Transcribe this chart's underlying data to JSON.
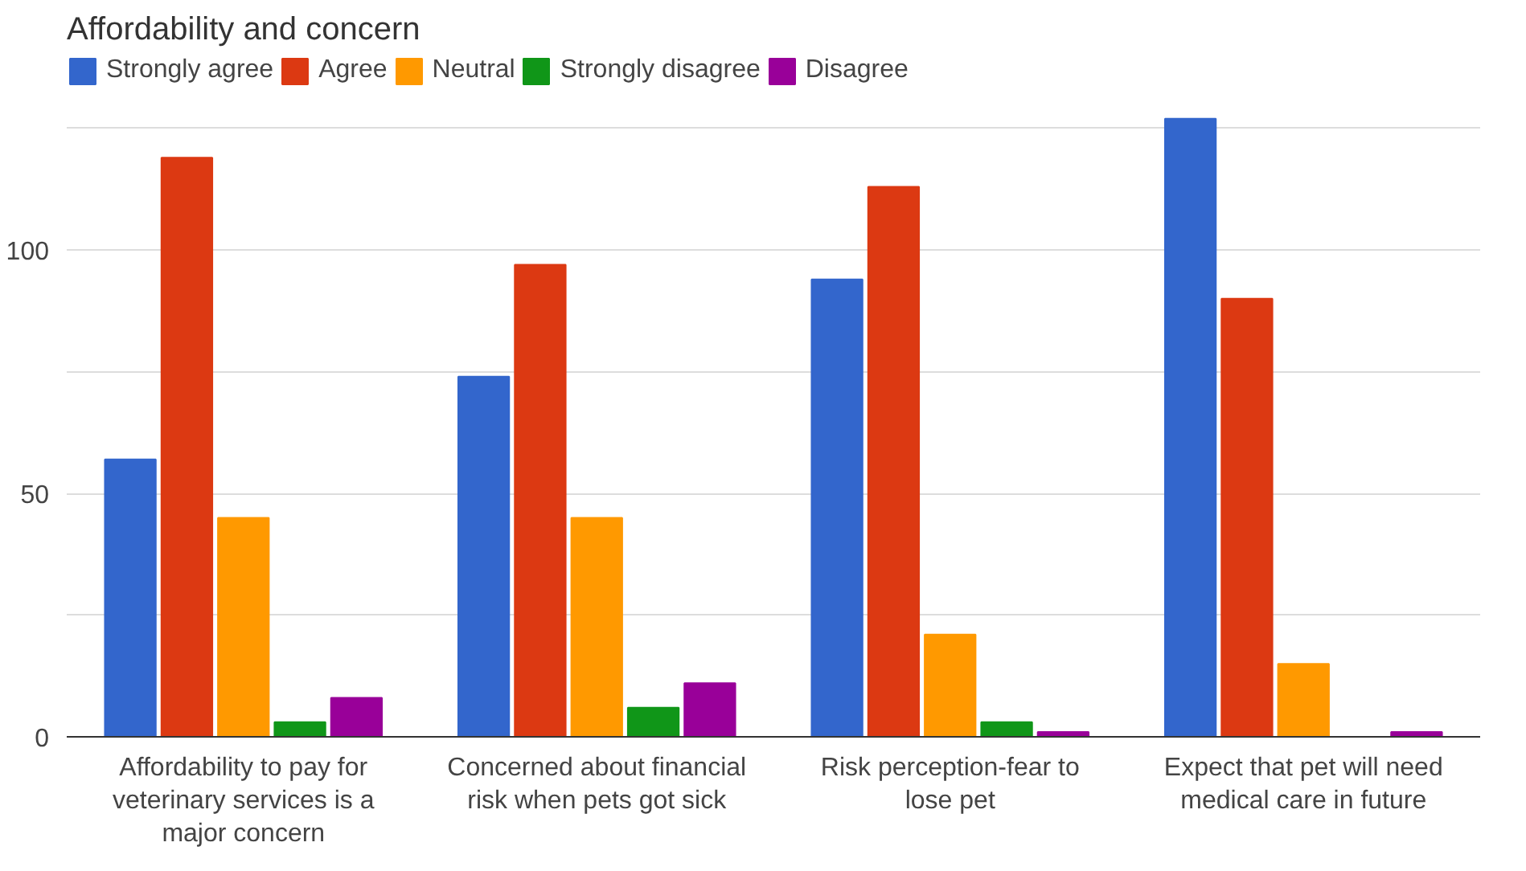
{
  "chart_data": {
    "type": "bar",
    "title": "Affordability and concern",
    "categories": [
      "Affordability to pay for veterinary services is a major concern",
      "Concerned about financial risk when pets got sick",
      "Risk perception-fear to lose pet",
      "Expect that pet will need medical care in future"
    ],
    "series": [
      {
        "name": "Strongly agree",
        "color": "#3366cc",
        "values": [
          57,
          74,
          94,
          127
        ]
      },
      {
        "name": "Agree",
        "color": "#dc3912",
        "values": [
          119,
          97,
          113,
          90
        ]
      },
      {
        "name": "Neutral",
        "color": "#ff9900",
        "values": [
          45,
          45,
          21,
          15
        ]
      },
      {
        "name": "Strongly disagree",
        "color": "#109618",
        "values": [
          3,
          6,
          3,
          0
        ]
      },
      {
        "name": "Disagree",
        "color": "#990099",
        "values": [
          8,
          11,
          1,
          1
        ]
      }
    ],
    "ylim": [
      0,
      140
    ],
    "yticks": [
      0,
      {
        "value": 25,
        "label": null
      },
      50,
      {
        "value": 75,
        "label": null
      },
      100,
      {
        "value": 125,
        "label": null
      }
    ],
    "grid": "y",
    "legend": "top"
  }
}
